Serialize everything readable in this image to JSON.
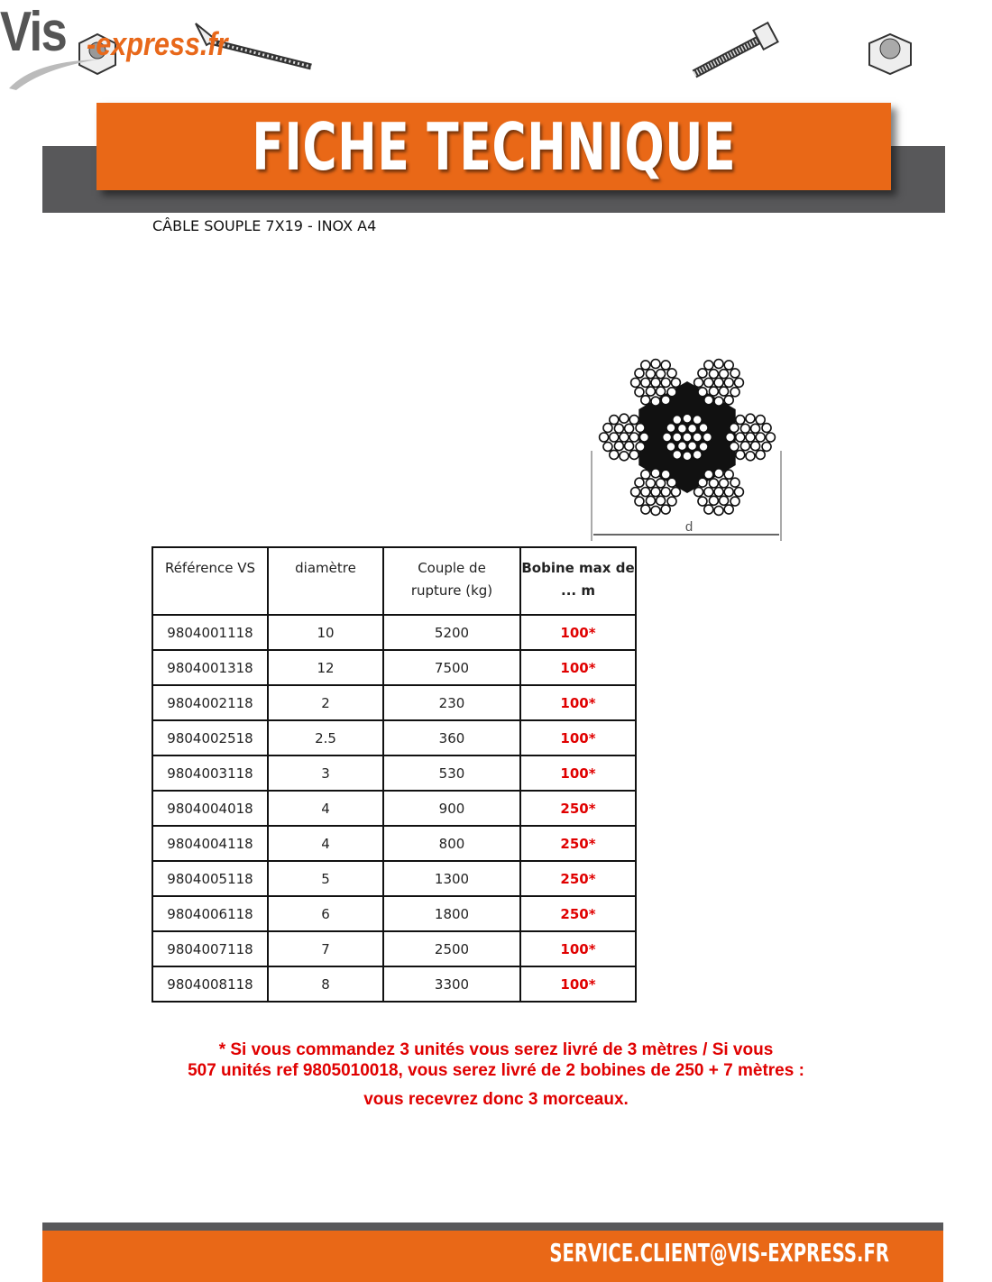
{
  "header": {
    "logo": "Vis-express.fr",
    "logo_main": "Vis",
    "logo_suffix": "-express.fr",
    "banner": "FICHE TECHNIQUE"
  },
  "subtitle": "CÂBLE SOUPLE 7X19 - INOX A4",
  "diagram": {
    "dimension_label": "d"
  },
  "table": {
    "headers": [
      "Référence VS",
      "diamètre",
      "Couple de rupture (kg)",
      "Bobine max de ... m"
    ],
    "rows": [
      [
        "9804001118",
        "10",
        "5200",
        "100*"
      ],
      [
        "9804001318",
        "12",
        "7500",
        "100*"
      ],
      [
        "9804002118",
        "2",
        "230",
        "100*"
      ],
      [
        "9804002518",
        "2.5",
        "360",
        "100*"
      ],
      [
        "9804003118",
        "3",
        "530",
        "100*"
      ],
      [
        "9804004018",
        "4",
        "900",
        "250*"
      ],
      [
        "9804004118",
        "4",
        "800",
        "250*"
      ],
      [
        "9804005118",
        "5",
        "1300",
        "250*"
      ],
      [
        "9804006118",
        "6",
        "1800",
        "250*"
      ],
      [
        "9804007118",
        "7",
        "2500",
        "100*"
      ],
      [
        "9804008118",
        "8",
        "3300",
        "100*"
      ]
    ]
  },
  "note": {
    "line1": "* Si vous commandez 3 unités vous serez livré de 3 mètres / Si vous",
    "line2": "507 unités ref 9805010018, vous serez livré de 2 bobines de 250 + 7 mètres :",
    "line3": "vous recevrez donc 3 morceaux."
  },
  "footer": {
    "email": "SERVICE.CLIENT@VIS-EXPRESS.FR"
  },
  "colors": {
    "orange": "#e96817",
    "grey": "#58585a",
    "red": "#e00000"
  }
}
